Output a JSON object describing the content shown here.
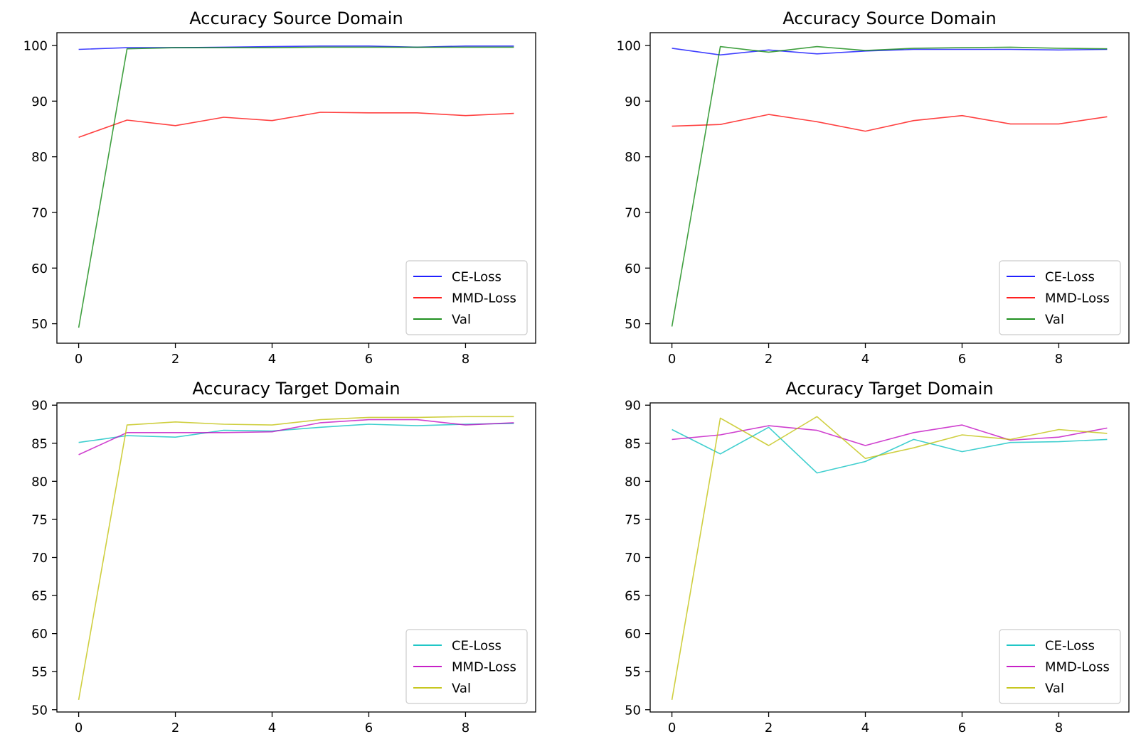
{
  "chart_data": [
    {
      "type": "line",
      "title": "Accuracy Source Domain",
      "xlabel": "",
      "ylabel": "",
      "xlim": [
        -0.45,
        9.45
      ],
      "ylim": [
        46.5,
        102.3
      ],
      "xticks": [
        0,
        2,
        4,
        6,
        8
      ],
      "yticks": [
        50,
        60,
        70,
        80,
        90,
        100
      ],
      "legend_position": "lower-right",
      "grid": false,
      "x": [
        0,
        1,
        2,
        3,
        4,
        5,
        6,
        7,
        8,
        9
      ],
      "series": [
        {
          "name": "CE-Loss",
          "color": "#0000ff",
          "values": [
            99.3,
            99.6,
            99.6,
            99.7,
            99.8,
            99.9,
            99.9,
            99.7,
            99.9,
            99.9
          ]
        },
        {
          "name": "MMD-Loss",
          "color": "#ff0000",
          "values": [
            83.5,
            86.6,
            85.6,
            87.1,
            86.5,
            88.0,
            87.9,
            87.9,
            87.4,
            87.8
          ]
        },
        {
          "name": "Val",
          "color": "#008000",
          "values": [
            49.3,
            99.4,
            99.6,
            99.6,
            99.6,
            99.7,
            99.7,
            99.7,
            99.7,
            99.7
          ]
        }
      ]
    },
    {
      "type": "line",
      "title": "Accuracy Source Domain",
      "xlabel": "",
      "ylabel": "",
      "xlim": [
        -0.45,
        9.45
      ],
      "ylim": [
        46.5,
        102.3
      ],
      "xticks": [
        0,
        2,
        4,
        6,
        8
      ],
      "yticks": [
        50,
        60,
        70,
        80,
        90,
        100
      ],
      "legend_position": "lower-right",
      "grid": false,
      "x": [
        0,
        1,
        2,
        3,
        4,
        5,
        6,
        7,
        8,
        9
      ],
      "series": [
        {
          "name": "CE-Loss",
          "color": "#0000ff",
          "values": [
            99.5,
            98.3,
            99.2,
            98.5,
            99.0,
            99.3,
            99.3,
            99.3,
            99.2,
            99.3
          ]
        },
        {
          "name": "MMD-Loss",
          "color": "#ff0000",
          "values": [
            85.5,
            85.8,
            87.6,
            86.3,
            84.6,
            86.5,
            87.4,
            85.9,
            85.9,
            87.2
          ]
        },
        {
          "name": "Val",
          "color": "#008000",
          "values": [
            49.5,
            99.8,
            98.8,
            99.8,
            99.1,
            99.5,
            99.6,
            99.7,
            99.5,
            99.4
          ]
        }
      ]
    },
    {
      "type": "line",
      "title": "Accuracy Target Domain",
      "xlabel": "",
      "ylabel": "",
      "xlim": [
        -0.45,
        9.45
      ],
      "ylim": [
        49.7,
        90.3
      ],
      "xticks": [
        0,
        2,
        4,
        6,
        8
      ],
      "yticks": [
        50,
        55,
        60,
        65,
        70,
        75,
        80,
        85,
        90
      ],
      "legend_position": "lower-right",
      "grid": false,
      "x": [
        0,
        1,
        2,
        3,
        4,
        5,
        6,
        7,
        8,
        9
      ],
      "series": [
        {
          "name": "CE-Loss",
          "color": "#00bfbf",
          "values": [
            85.1,
            86.0,
            85.8,
            86.7,
            86.6,
            87.1,
            87.5,
            87.3,
            87.5,
            87.6
          ]
        },
        {
          "name": "MMD-Loss",
          "color": "#bf00bf",
          "values": [
            83.5,
            86.4,
            86.4,
            86.4,
            86.5,
            87.7,
            88.1,
            88.1,
            87.4,
            87.7
          ]
        },
        {
          "name": "Val",
          "color": "#bfbf00",
          "values": [
            51.3,
            87.4,
            87.8,
            87.5,
            87.4,
            88.1,
            88.4,
            88.4,
            88.5,
            88.5
          ]
        }
      ]
    },
    {
      "type": "line",
      "title": "Accuracy Target Domain",
      "xlabel": "",
      "ylabel": "",
      "xlim": [
        -0.45,
        9.45
      ],
      "ylim": [
        49.7,
        90.3
      ],
      "xticks": [
        0,
        2,
        4,
        6,
        8
      ],
      "yticks": [
        50,
        55,
        60,
        65,
        70,
        75,
        80,
        85,
        90
      ],
      "legend_position": "lower-right",
      "grid": false,
      "x": [
        0,
        1,
        2,
        3,
        4,
        5,
        6,
        7,
        8,
        9
      ],
      "series": [
        {
          "name": "CE-Loss",
          "color": "#00bfbf",
          "values": [
            86.8,
            83.6,
            87.1,
            81.1,
            82.6,
            85.5,
            83.9,
            85.1,
            85.2,
            85.5
          ]
        },
        {
          "name": "MMD-Loss",
          "color": "#bf00bf",
          "values": [
            85.5,
            86.1,
            87.3,
            86.7,
            84.7,
            86.4,
            87.4,
            85.4,
            85.8,
            87.0
          ]
        },
        {
          "name": "Val",
          "color": "#bfbf00",
          "values": [
            51.3,
            88.3,
            84.7,
            88.5,
            83.0,
            84.4,
            86.1,
            85.5,
            86.8,
            86.3
          ]
        }
      ]
    }
  ]
}
